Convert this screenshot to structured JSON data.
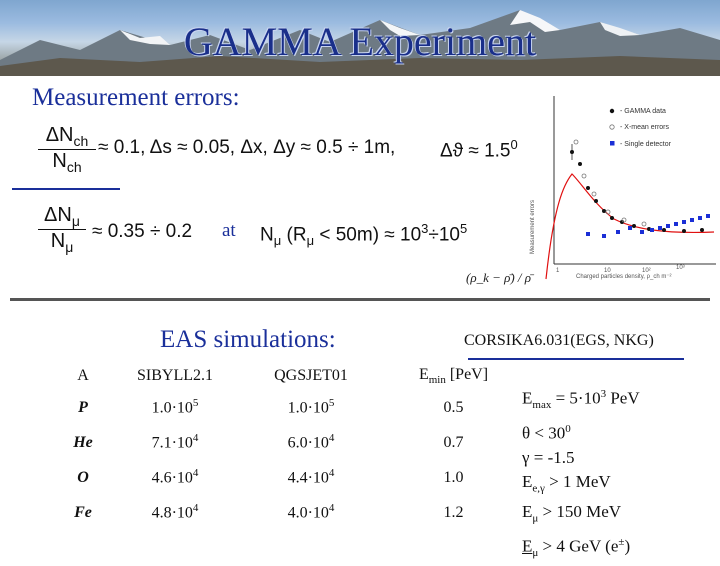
{
  "header": {
    "title": "GAMMA Experiment"
  },
  "measurement": {
    "heading": "Measurement errors:",
    "ch_fraction": {
      "numerator": "ΔN",
      "num_sub": "ch",
      "denominator": "N",
      "den_sub": "ch"
    },
    "ch_rest": "≈ 0.1, Δs ≈ 0.05, Δx, Δy ≈ 0.5 ÷ 1m,",
    "theta_label": "Δϑ ≈ 1.5",
    "theta_sup": "0",
    "mu_fraction": {
      "numerator": "ΔN",
      "num_sub": "μ",
      "denominator": "N",
      "den_sub": "μ"
    },
    "mu_rest": "≈ 0.35 ÷ 0.2",
    "at_label": "at",
    "range_text": "N",
    "range_sub": "μ",
    "range_cond": "(R",
    "range_cond_sub": "μ",
    "range_tail": "< 50m) ≈ 10",
    "range_exp1": "3",
    "range_div": "÷10",
    "range_exp2": "5"
  },
  "inset_plot": {
    "legend": [
      "- GAMMA data",
      "- X-mean errors",
      "- Single detector"
    ],
    "xlabel": "Charged particles density, ρ_ch m⁻²",
    "ylabel": "Measurement errors",
    "x_ticks": [
      "1",
      "10",
      "10²",
      "10³"
    ],
    "formula": "(ρ_k − ρ̄) / ρ̄",
    "colors": {
      "gamma": "#111111",
      "xmean": "#777777",
      "single": "#1b2fd6",
      "curve": "#e01010"
    }
  },
  "simulations": {
    "heading": "EAS simulations:",
    "corsika": "CORSIKA6.031(EGS, NKG)",
    "columns": [
      "A",
      "SIBYLL2.1",
      "QGSJET01",
      "Emin [PeV]"
    ],
    "emin_label": "E",
    "emin_sub": "min",
    "emin_unit": " [PeV]",
    "rows": [
      {
        "a": "P",
        "sibyll": "1.0·10",
        "sib_exp": "5",
        "qgs": "1.0·10",
        "qgs_exp": "5",
        "emin": "0.5"
      },
      {
        "a": "He",
        "sibyll": "7.1·10",
        "sib_exp": "4",
        "qgs": "6.0·10",
        "qgs_exp": "4",
        "emin": "0.7"
      },
      {
        "a": "O",
        "sibyll": "4.6·10",
        "sib_exp": "4",
        "qgs": "4.4·10",
        "qgs_exp": "4",
        "emin": "1.0"
      },
      {
        "a": "Fe",
        "sibyll": "4.8·10",
        "sib_exp": "4",
        "qgs": "4.0·10",
        "qgs_exp": "4",
        "emin": "1.2"
      }
    ],
    "params": [
      {
        "pre": "E",
        "sub": "max",
        "post": " = 5·10",
        "sup": "3",
        "tail": " PeV"
      },
      {
        "pre": "θ < 30",
        "sub": "",
        "post": "",
        "sup": "0",
        "tail": ""
      },
      {
        "pre": "γ = -1.5",
        "sub": "",
        "post": "",
        "sup": "",
        "tail": ""
      },
      {
        "pre": "E",
        "sub": "e,γ",
        "post": " > 1 MeV",
        "sup": "",
        "tail": ""
      },
      {
        "pre": "E",
        "sub": "μ",
        "post": " > 150 MeV",
        "sup": "",
        "tail": ""
      },
      {
        "pre": "E",
        "sub": "μ",
        "post": " > 4 GeV (e",
        "sup": "±",
        "tail": ")"
      }
    ]
  }
}
